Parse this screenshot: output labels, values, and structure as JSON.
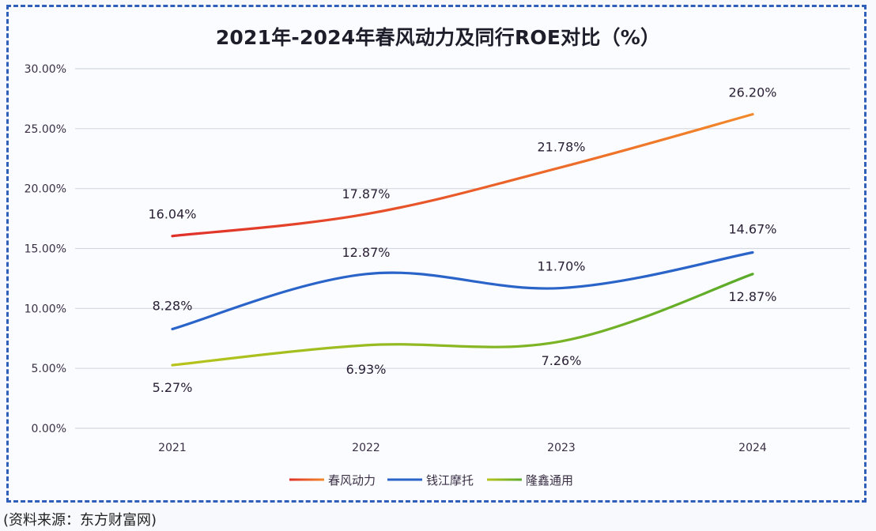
{
  "chart_data": {
    "type": "line",
    "title": "2021年-2024年春风动力及同行ROE对比（%）",
    "xlabel": "",
    "ylabel": "",
    "categories": [
      "2021",
      "2022",
      "2023",
      "2024"
    ],
    "ylim": [
      0,
      30
    ],
    "yticks": [
      0,
      5,
      10,
      15,
      20,
      25,
      30
    ],
    "ytick_labels": [
      "0.00%",
      "5.00%",
      "10.00%",
      "15.00%",
      "20.00%",
      "25.00%",
      "30.00%"
    ],
    "grid": true,
    "legend_position": "bottom",
    "series": [
      {
        "name": "春风动力",
        "values": [
          16.04,
          17.87,
          21.78,
          26.2
        ],
        "labels": [
          "16.04%",
          "17.87%",
          "21.78%",
          "26.20%"
        ],
        "color_start": "#e0302a",
        "color_end": "#f2892a"
      },
      {
        "name": "钱江摩托",
        "values": [
          8.28,
          12.87,
          11.7,
          14.67
        ],
        "labels": [
          "8.28%",
          "12.87%",
          "11.70%",
          "14.67%"
        ],
        "color_start": "#2a64c8",
        "color_end": "#2a64c8"
      },
      {
        "name": "隆鑫通用",
        "values": [
          5.27,
          6.93,
          7.26,
          12.87
        ],
        "labels": [
          "5.27%",
          "6.93%",
          "7.26%",
          "12.87%"
        ],
        "color_start": "#b8c41c",
        "color_end": "#5aab2a"
      }
    ]
  },
  "source": "(资料来源：东方财富网)",
  "frame_color": "#2f5fb8"
}
